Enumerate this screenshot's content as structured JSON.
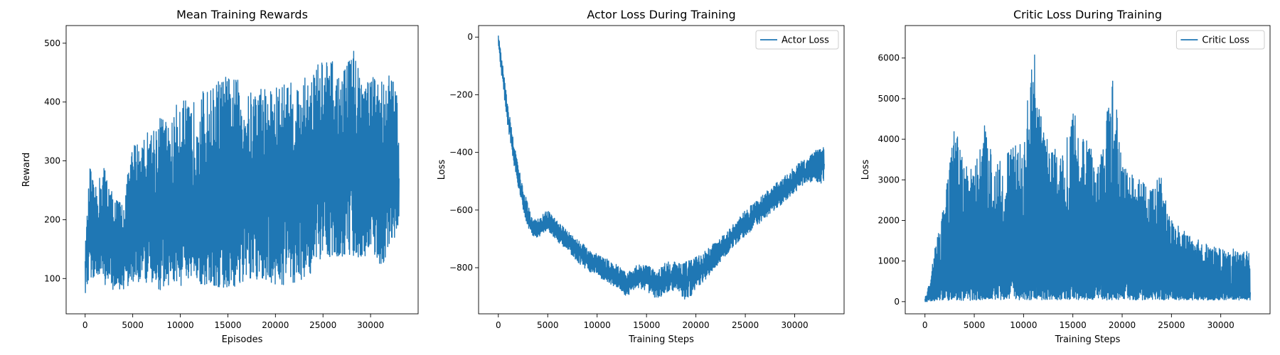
{
  "colors": {
    "series": "#1f77b4",
    "axes": "#000000",
    "legend_border": "#cccccc",
    "background": "#ffffff"
  },
  "chart_data": [
    {
      "type": "line",
      "title": "Mean Training Rewards",
      "xlabel": "Episodes",
      "ylabel": "Reward",
      "xlim": [
        -2000,
        35000
      ],
      "ylim": [
        40,
        530
      ],
      "xticks": [
        0,
        5000,
        10000,
        15000,
        20000,
        25000,
        30000
      ],
      "yticks": [
        100,
        200,
        300,
        400,
        500
      ],
      "grid": false,
      "legend": null,
      "series": [
        {
          "noise": 0.5,
          "x": [
            0,
            500,
            1000,
            2000,
            3000,
            4000,
            5000,
            6000,
            7000,
            8000,
            9000,
            10000,
            11000,
            12000,
            13000,
            14000,
            15000,
            16000,
            17000,
            18000,
            19000,
            20000,
            21000,
            22000,
            23000,
            24000,
            25000,
            26000,
            27000,
            28000,
            29000,
            30000,
            31000,
            32000,
            33000
          ],
          "center": [
            120,
            180,
            170,
            165,
            150,
            140,
            180,
            210,
            180,
            220,
            200,
            225,
            200,
            215,
            210,
            230,
            225,
            245,
            240,
            225,
            230,
            235,
            240,
            235,
            250,
            255,
            260,
            265,
            255,
            270,
            265,
            275,
            270,
            280,
            270
          ],
          "low": [
            70,
            100,
            100,
            90,
            80,
            80,
            90,
            95,
            85,
            80,
            90,
            85,
            90,
            90,
            85,
            80,
            80,
            85,
            90,
            90,
            95,
            85,
            90,
            90,
            100,
            110,
            130,
            140,
            135,
            140,
            130,
            150,
            120,
            140,
            180
          ],
          "high": [
            150,
            295,
            250,
            295,
            240,
            230,
            330,
            340,
            360,
            380,
            360,
            420,
            390,
            420,
            420,
            440,
            445,
            440,
            410,
            430,
            430,
            425,
            440,
            430,
            440,
            460,
            475,
            470,
            440,
            505,
            450,
            445,
            440,
            450,
            420
          ]
        }
      ]
    },
    {
      "type": "line",
      "title": "Actor Loss During Training",
      "xlabel": "Training Steps",
      "ylabel": "Loss",
      "xlim": [
        -2000,
        35000
      ],
      "ylim": [
        -960,
        40
      ],
      "xticks": [
        0,
        5000,
        10000,
        15000,
        20000,
        25000,
        30000
      ],
      "yticks": [
        0,
        -200,
        -400,
        -600,
        -800
      ],
      "grid": false,
      "legend": "top-right",
      "series": [
        {
          "name": "Actor Loss",
          "noise": 0.35,
          "x": [
            0,
            250,
            500,
            1000,
            1500,
            2000,
            2500,
            3000,
            3500,
            4000,
            5000,
            6000,
            7000,
            8000,
            9000,
            10000,
            11000,
            12000,
            13000,
            14000,
            15000,
            16000,
            17000,
            18000,
            19000,
            20000,
            21000,
            22000,
            23000,
            24000,
            25000,
            26000,
            27000,
            28000,
            29000,
            30000,
            31000,
            32000,
            33000
          ],
          "center": [
            -10,
            -80,
            -150,
            -280,
            -390,
            -480,
            -560,
            -620,
            -660,
            -665,
            -640,
            -680,
            -710,
            -740,
            -770,
            -790,
            -810,
            -830,
            -860,
            -830,
            -830,
            -860,
            -840,
            -830,
            -850,
            -820,
            -790,
            -760,
            -720,
            -680,
            -650,
            -620,
            -590,
            -560,
            -530,
            -500,
            -470,
            -450,
            -440
          ],
          "low": [
            -30,
            -110,
            -190,
            -320,
            -430,
            -520,
            -600,
            -660,
            -690,
            -695,
            -670,
            -710,
            -740,
            -780,
            -810,
            -830,
            -850,
            -870,
            -900,
            -870,
            -880,
            -910,
            -890,
            -880,
            -920,
            -880,
            -840,
            -800,
            -760,
            -720,
            -690,
            -660,
            -630,
            -600,
            -570,
            -540,
            -510,
            -500,
            -510
          ],
          "high": [
            10,
            -50,
            -110,
            -240,
            -350,
            -440,
            -520,
            -580,
            -630,
            -630,
            -600,
            -640,
            -670,
            -700,
            -730,
            -750,
            -770,
            -790,
            -820,
            -790,
            -790,
            -810,
            -780,
            -780,
            -780,
            -760,
            -740,
            -710,
            -680,
            -640,
            -600,
            -570,
            -540,
            -510,
            -480,
            -450,
            -420,
            -390,
            -380
          ]
        }
      ]
    },
    {
      "type": "line",
      "title": "Critic Loss During Training",
      "xlabel": "Training Steps",
      "ylabel": "Loss",
      "xlim": [
        -2000,
        35000
      ],
      "ylim": [
        -300,
        6800
      ],
      "xticks": [
        0,
        5000,
        10000,
        15000,
        20000,
        25000,
        30000
      ],
      "yticks": [
        0,
        1000,
        2000,
        3000,
        4000,
        5000,
        6000
      ],
      "grid": false,
      "legend": "top-right",
      "series": [
        {
          "name": "Critic Loss",
          "noise": 0.85,
          "x": [
            0,
            500,
            1000,
            1500,
            2000,
            3000,
            4000,
            5000,
            6000,
            7000,
            8000,
            9000,
            10000,
            11000,
            12000,
            13000,
            14000,
            15000,
            16000,
            17000,
            18000,
            19000,
            20000,
            21000,
            22000,
            23000,
            24000,
            25000,
            26000,
            27000,
            28000,
            29000,
            30000,
            31000,
            32000,
            33000
          ],
          "center": [
            0,
            150,
            300,
            400,
            450,
            500,
            550,
            600,
            620,
            640,
            660,
            680,
            700,
            720,
            700,
            680,
            660,
            650,
            640,
            620,
            600,
            580,
            550,
            520,
            480,
            440,
            400,
            370,
            340,
            320,
            300,
            280,
            260,
            250,
            240,
            230
          ],
          "low": [
            0,
            0,
            20,
            20,
            30,
            30,
            30,
            30,
            40,
            40,
            40,
            40,
            40,
            40,
            40,
            40,
            40,
            40,
            40,
            40,
            40,
            40,
            40,
            40,
            40,
            40,
            40,
            40,
            40,
            40,
            40,
            40,
            40,
            40,
            40,
            40
          ],
          "high": [
            100,
            500,
            1400,
            2000,
            2600,
            4300,
            3500,
            3200,
            4400,
            3500,
            3700,
            3800,
            4000,
            6400,
            4200,
            3800,
            3700,
            4800,
            4000,
            3900,
            3700,
            5800,
            3400,
            3200,
            3000,
            2900,
            3100,
            2000,
            1800,
            1600,
            1500,
            1400,
            1300,
            1300,
            1300,
            1200
          ]
        }
      ]
    }
  ]
}
